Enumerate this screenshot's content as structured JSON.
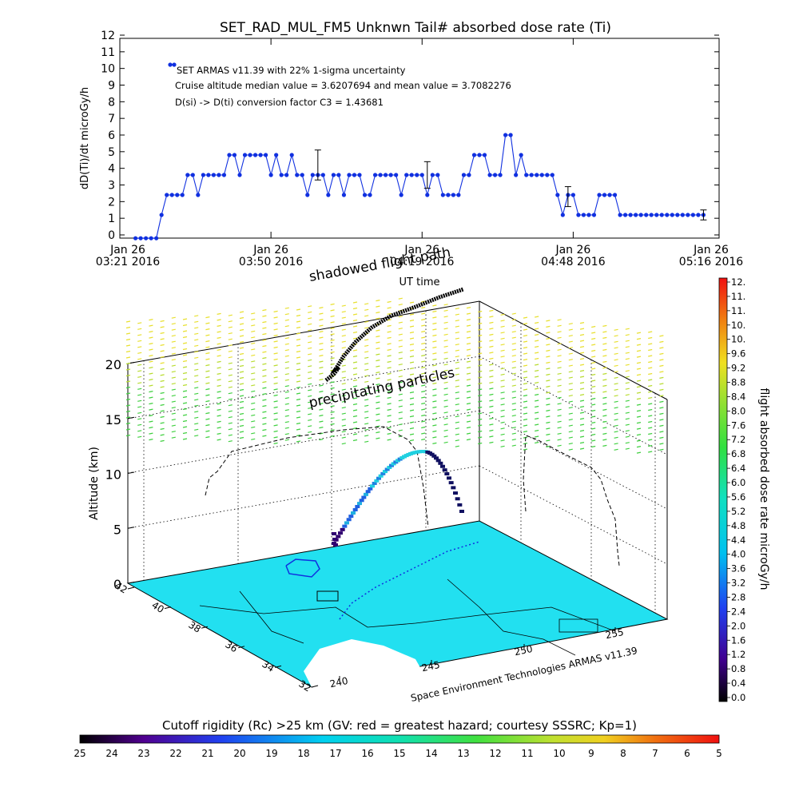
{
  "chart_data": [
    {
      "type": "line",
      "title": "SET_RAD_MUL_FM5 Unknwn Tail#  absorbed dose rate (Ti)",
      "ylabel": "dD(Ti)/dt microGy/h",
      "xlabel": "UT time",
      "ylim": [
        0,
        12
      ],
      "yticks": [
        0,
        1,
        2,
        3,
        4,
        5,
        6,
        7,
        8,
        9,
        10,
        11,
        12
      ],
      "xlim_minutes": [
        0,
        115
      ],
      "xticks": [
        {
          "t": 0,
          "line1": "Jan 26",
          "line2": "03:21 2016"
        },
        {
          "t": 29,
          "line1": "Jan 26",
          "line2": "03:50 2016"
        },
        {
          "t": 58,
          "line1": "Jan 26",
          "line2": "04:19 2016"
        },
        {
          "t": 87,
          "line1": "Jan 26",
          "line2": "04:48 2016"
        },
        {
          "t": 115,
          "line1": "Jan 26",
          "line2": "05:16 2016"
        }
      ],
      "legend_marker_value": 10.5,
      "annotations": [
        "SET ARMAS v11.39 with 22% 1-sigma uncertainty",
        "Cruise altitude median value = 3.6207694 and mean value = 3.7082276",
        "D(si) -> D(ti) conversion factor C3 = 1.43681"
      ],
      "series": [
        {
          "color": "#1030e0",
          "x": [
            3,
            4,
            5,
            6,
            7,
            8,
            9,
            10,
            11,
            12,
            13,
            14,
            15,
            16,
            17,
            18,
            19,
            20,
            21,
            22,
            23,
            24,
            25,
            26,
            27,
            28,
            29,
            30,
            31,
            32,
            33,
            34,
            35,
            36,
            37,
            38,
            39,
            40,
            41,
            42,
            43,
            44,
            45,
            46,
            47,
            48,
            49,
            50,
            51,
            52,
            53,
            54,
            55,
            56,
            57,
            58,
            59,
            60,
            61,
            62,
            63,
            64,
            65,
            66,
            67,
            68,
            69,
            70,
            71,
            72,
            73,
            74,
            75,
            76,
            77,
            78,
            79,
            80,
            81,
            82,
            83,
            84,
            85,
            86,
            87,
            88,
            89,
            90,
            91,
            92,
            93,
            94,
            95,
            96,
            97,
            98,
            99,
            100,
            101,
            102,
            103,
            104,
            105,
            106,
            107,
            108,
            109,
            110,
            111,
            112
          ],
          "y": [
            -0.2,
            -0.2,
            -0.2,
            -0.2,
            -0.2,
            1.2,
            2.4,
            2.4,
            2.4,
            2.4,
            3.6,
            3.6,
            2.4,
            3.6,
            3.6,
            3.6,
            3.6,
            3.6,
            4.8,
            4.8,
            3.6,
            4.8,
            4.8,
            4.8,
            4.8,
            4.8,
            3.6,
            4.8,
            3.6,
            3.6,
            4.8,
            3.6,
            3.6,
            2.4,
            3.6,
            3.6,
            3.6,
            2.4,
            3.6,
            3.6,
            2.4,
            3.6,
            3.6,
            3.6,
            2.4,
            2.4,
            3.6,
            3.6,
            3.6,
            3.6,
            3.6,
            2.4,
            3.6,
            3.6,
            3.6,
            3.6,
            2.4,
            3.6,
            3.6,
            2.4,
            2.4,
            2.4,
            2.4,
            3.6,
            3.6,
            4.8,
            4.8,
            4.8,
            3.6,
            3.6,
            3.6,
            6.0,
            6.0,
            3.6,
            4.8,
            3.6,
            3.6,
            3.6,
            3.6,
            3.6,
            3.6,
            2.4,
            1.2,
            2.4,
            2.4,
            1.2,
            1.2,
            1.2,
            1.2,
            2.4,
            2.4,
            2.4,
            2.4,
            1.2,
            1.2,
            1.2,
            1.2,
            1.2,
            1.2,
            1.2,
            1.2,
            1.2,
            1.2,
            1.2,
            1.2,
            1.2,
            1.2,
            1.2,
            1.2,
            1.2
          ]
        }
      ],
      "error_bars": [
        {
          "x": 38,
          "y": 4.2,
          "low": 3.3,
          "high": 5.1
        },
        {
          "x": 59,
          "y": 3.6,
          "low": 2.8,
          "high": 4.4
        },
        {
          "x": 86,
          "y": 2.2,
          "low": 1.7,
          "high": 2.9
        },
        {
          "x": 112,
          "y": 1.2,
          "low": 0.9,
          "high": 1.5
        }
      ]
    },
    {
      "type": "scatter",
      "subtype": "3d-flight-track",
      "zlabel": "Altitude (km)",
      "zticks": [
        "0",
        "5",
        "10",
        "15",
        "20"
      ],
      "lat_ticks": [
        "42",
        "40",
        "38",
        "36",
        "34",
        "32"
      ],
      "lon_ticks": [
        "240",
        "245",
        "250",
        "255"
      ],
      "footer_label": "Space Environment Technologies ARMAS v11.39",
      "labels": {
        "precipitating": "precipitating particles",
        "shadowed": "shadowed flight path"
      },
      "colorbar": {
        "label": "flight absorbed dose rate microGy/h",
        "ticks": [
          "12.",
          "11.",
          "11.",
          "10.",
          "10.",
          "9.6",
          "9.2",
          "8.8",
          "8.4",
          "8.0",
          "7.6",
          "7.2",
          "6.8",
          "6.4",
          "6.0",
          "5.6",
          "5.2",
          "4.8",
          "4.4",
          "4.0",
          "3.6",
          "3.2",
          "2.8",
          "2.4",
          "2.0",
          "1.6",
          "1.2",
          "0.8",
          "0.4",
          "0.0"
        ]
      }
    },
    {
      "type": "heatmap",
      "subtype": "colorbar-horizontal",
      "title": "Cutoff rigidity (Rc) >25 km (GV: red = greatest hazard; courtesy SSSRC; Kp=1)",
      "ticks": [
        "25",
        "24",
        "23",
        "22",
        "21",
        "20",
        "19",
        "18",
        "17",
        "16",
        "15",
        "14",
        "13",
        "12",
        "11",
        "10",
        "9",
        "8",
        "7",
        "6",
        "5"
      ]
    }
  ],
  "colors": {
    "series": "#1030e0",
    "map_fill": "#22e0f0",
    "precip_yellow": "#e8e030",
    "precip_green": "#40d040"
  }
}
